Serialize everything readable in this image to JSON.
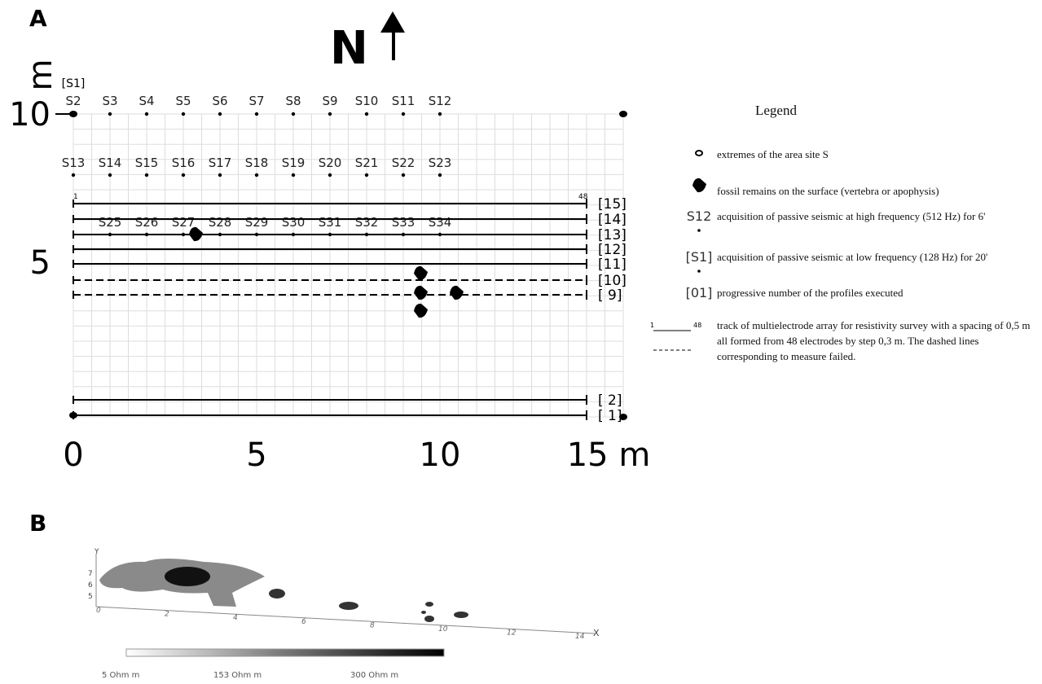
{
  "panels": {
    "a": "A",
    "b": "B"
  },
  "north": "N",
  "map": {
    "unit": "m",
    "y_ticks": [
      "10",
      "5"
    ],
    "x_ticks": [
      "0",
      "5",
      "10",
      "15 m"
    ],
    "s1": "[S1]",
    "row1": [
      "S2",
      "S3",
      "S4",
      "S5",
      "S6",
      "S7",
      "S8",
      "S9",
      "S10",
      "S11",
      "S12"
    ],
    "row2": [
      "S13",
      "S14",
      "S15",
      "S16",
      "S17",
      "S18",
      "S19",
      "S20",
      "S21",
      "S22",
      "S23"
    ],
    "row3": [
      "S25",
      "S26",
      "S27",
      "S28",
      "S29",
      "S30",
      "S31",
      "S32",
      "S33",
      "S34"
    ],
    "profiles": [
      {
        "label": "[15]",
        "dashed": false
      },
      {
        "label": "[14]",
        "dashed": false
      },
      {
        "label": "[13]",
        "dashed": false
      },
      {
        "label": "[12]",
        "dashed": false
      },
      {
        "label": "[11]",
        "dashed": false
      },
      {
        "label": "[10]",
        "dashed": true
      },
      {
        "label": "[ 9]",
        "dashed": true
      },
      {
        "label": "[ 2]",
        "dashed": false
      },
      {
        "label": "[ 1]",
        "dashed": false
      }
    ],
    "electrode_first": "1",
    "electrode_last": "48"
  },
  "legend": {
    "title": "Legend",
    "items": [
      {
        "symbol": "",
        "text": "extremes of the area site S"
      },
      {
        "symbol": "",
        "text": "fossil remains on the surface (vertebra or apophysis)"
      },
      {
        "symbol": "S12",
        "text": "acquisition of passive seismic at high frequency (512 Hz) for 6'"
      },
      {
        "symbol": "[S1]",
        "text": "acquisition of passive seismic at low frequency (128 Hz) for 20'"
      },
      {
        "symbol": "[01]",
        "text": "progressive number of the profiles executed"
      },
      {
        "symbol": "",
        "text": "track of multielectrode array for resistivity survey with a spacing of 0,5 m all formed from 48 electrodes by step 0,3 m. The dashed lines corresponding to measure failed."
      }
    ],
    "track_first": "1",
    "track_last": "48"
  },
  "panel_b": {
    "x_axis": "X",
    "y_axis": "Y",
    "x_ticks": [
      "0",
      "2",
      "4",
      "6",
      "8",
      "10",
      "12",
      "14"
    ],
    "y_ticks": [
      "7",
      "6",
      "5"
    ],
    "colorbar": [
      "5 Ohm m",
      "153 Ohm m",
      "300 Ohm m"
    ]
  }
}
